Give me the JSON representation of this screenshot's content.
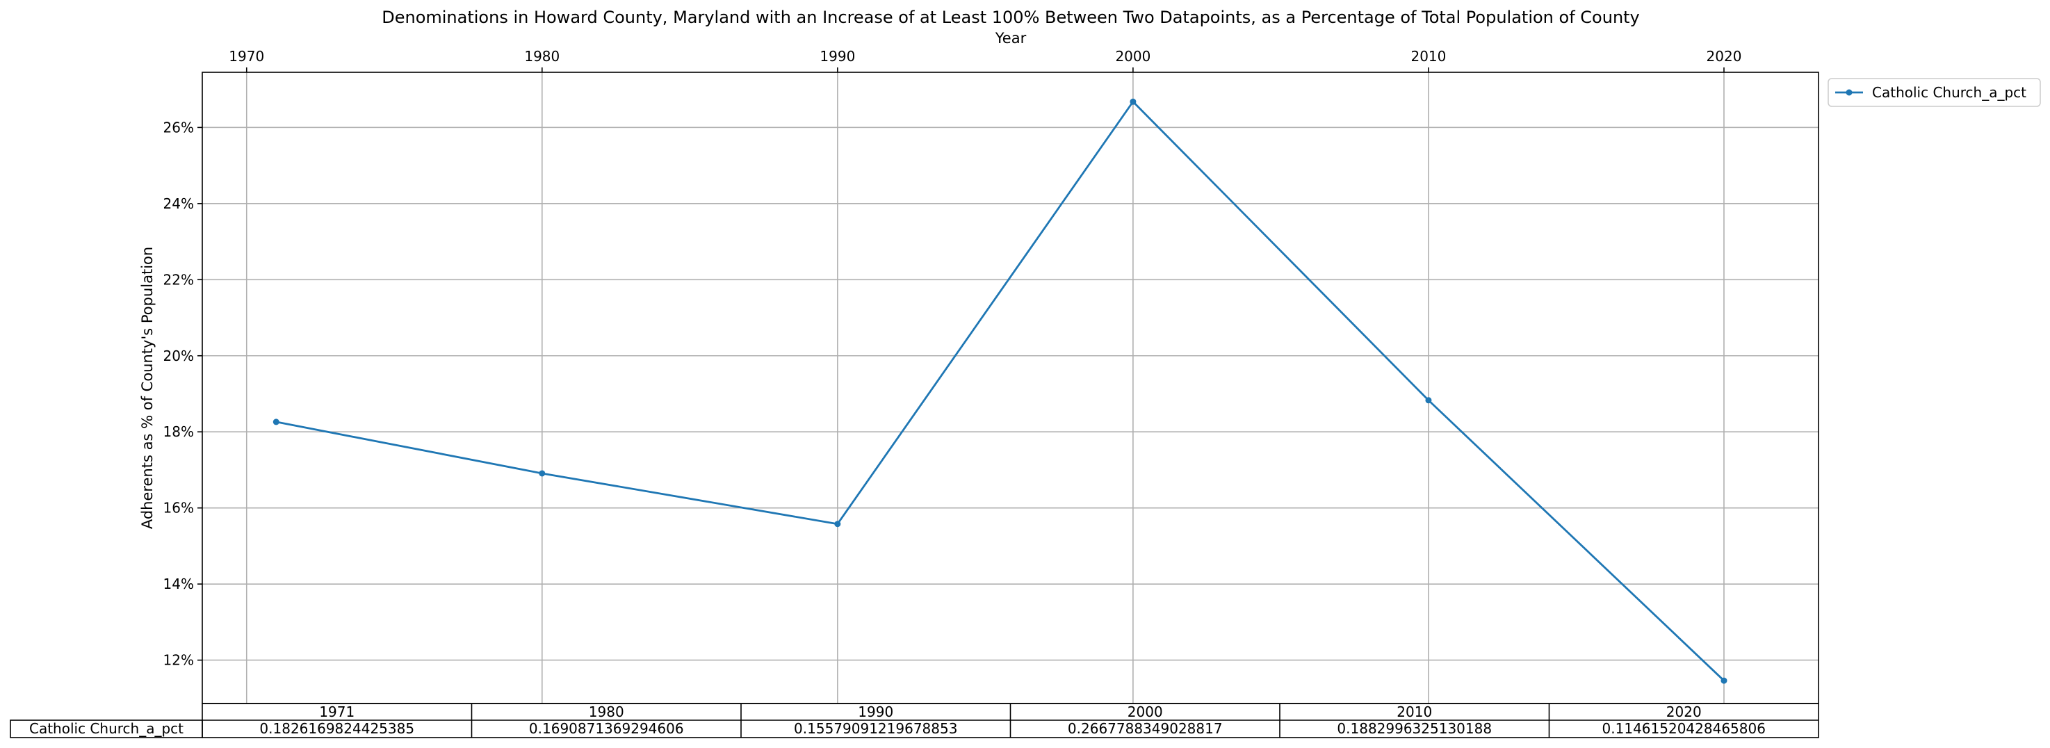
{
  "chart_data": {
    "type": "line",
    "title": "Denominations in Howard County, Maryland with an Increase of at Least 100% Between Two Datapoints, as a Percentage of Total Population of County",
    "xlabel": "Year",
    "ylabel": "Adherents as % of County's Population",
    "x": [
      1971,
      1980,
      1990,
      2000,
      2010,
      2020
    ],
    "x_ticks": [
      1970,
      1980,
      1990,
      2000,
      2010,
      2020
    ],
    "y_ticks": [
      0.12,
      0.14,
      0.16,
      0.18,
      0.2,
      0.22,
      0.24,
      0.26
    ],
    "y_tick_labels": [
      "12%",
      "14%",
      "16%",
      "18%",
      "20%",
      "22%",
      "24%",
      "26%"
    ],
    "xlim": [
      1968.5,
      2023.2
    ],
    "ylim": [
      0.1086,
      0.2745
    ],
    "grid": true,
    "legend_position": "outside-top-right",
    "x_axis_position": "top",
    "series": [
      {
        "name": "Catholic Church_a_pct",
        "color": "#1f77b4",
        "marker": "circle",
        "values": [
          0.1826169824425385,
          0.1690871369294606,
          0.15579091219678853,
          0.2667788349028817,
          0.1882996325130188,
          0.11461520428465806
        ]
      }
    ],
    "table": {
      "columns": [
        "1971",
        "1980",
        "1990",
        "2000",
        "2010",
        "2020"
      ],
      "row_label": "Catholic Church_a_pct",
      "cells": [
        "0.1826169824425385",
        "0.1690871369294606",
        "0.15579091219678853",
        "0.2667788349028817",
        "0.1882996325130188",
        "0.11461520428465806"
      ]
    }
  }
}
